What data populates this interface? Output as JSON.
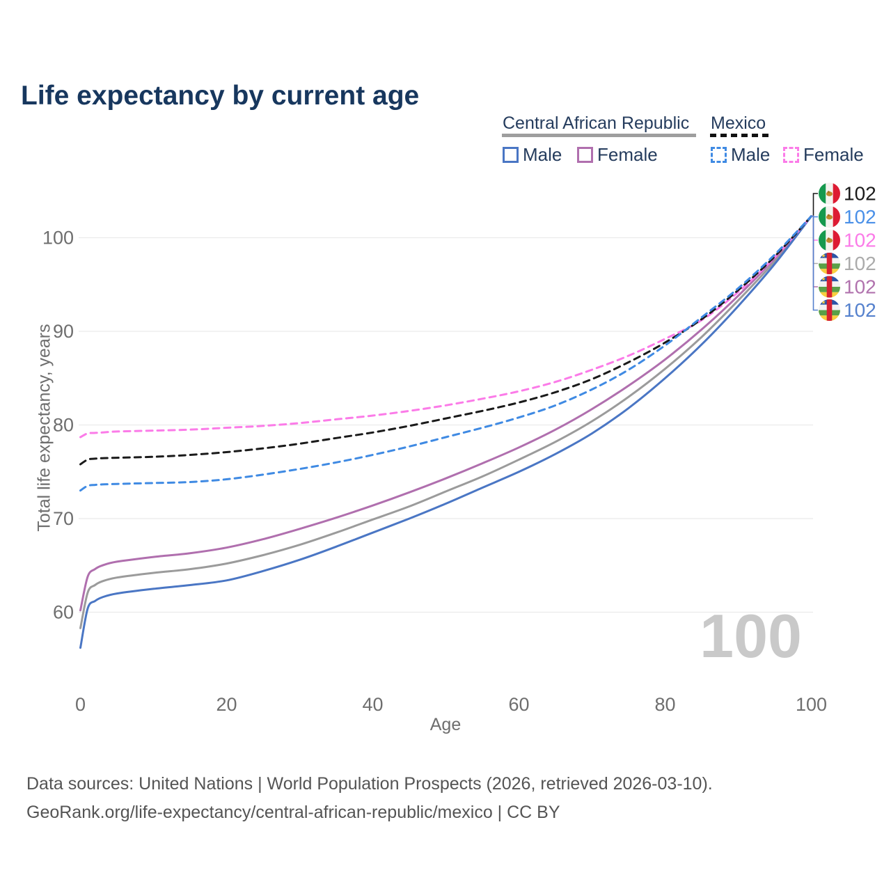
{
  "title": "Life expectancy by current age",
  "legend": {
    "car": {
      "name": "Central African Republic",
      "male_label": "Male",
      "female_label": "Female",
      "underline_color": "#9e9e9e",
      "underline_style": "solid"
    },
    "mexico": {
      "name": "Mexico",
      "male_label": "Male",
      "female_label": "Female",
      "underline_color": "#111111",
      "underline_style": "dashed"
    }
  },
  "watermark_age": "100",
  "footer": {
    "line1": "Data sources: United Nations | World Population Prospects (2026, retrieved 2026-03-10).",
    "line2": "GeoRank.org/life-expectancy/central-african-republic/mexico | CC BY"
  },
  "colors": {
    "title_text": "#17375e",
    "legend_text": "#253c5d",
    "grid": "#ebebeb",
    "axis_text": "#6e6e6e",
    "watermark": "#c9c9c9",
    "car_male": "#4a76c4",
    "car_female": "#b06fae",
    "car_total": "#9b9b9b",
    "mx_male": "#3f8ae3",
    "mx_female": "#fb7be8",
    "mx_total": "#1a1a1a"
  },
  "chart_data": {
    "type": "line",
    "title": "Life expectancy by current age",
    "xlabel": "Age",
    "ylabel": "Total life expectancy, years",
    "xlim": [
      0,
      100
    ],
    "ylim": [
      56,
      103
    ],
    "xticks": [
      0,
      20,
      40,
      60,
      80,
      100
    ],
    "yticks": [
      60,
      70,
      80,
      90,
      100
    ],
    "grid": "horizontal",
    "legend_position": "top-right",
    "x": [
      0,
      1,
      2,
      3,
      5,
      10,
      15,
      20,
      25,
      30,
      35,
      40,
      45,
      50,
      55,
      60,
      65,
      70,
      75,
      80,
      85,
      90,
      95,
      100
    ],
    "series": [
      {
        "id": "car-total",
        "name": "Central African Republic",
        "sex": "Both",
        "style": "solid",
        "color": "#9b9b9b",
        "values": [
          58.3,
          62.1,
          62.9,
          63.3,
          63.7,
          64.2,
          64.6,
          65.2,
          66.1,
          67.2,
          68.5,
          69.9,
          71.3,
          72.9,
          74.5,
          76.3,
          78.2,
          80.4,
          83.0,
          86.0,
          89.4,
          93.3,
          97.5,
          102.3
        ]
      },
      {
        "id": "car-female",
        "name": "Central African Republic — Female",
        "sex": "Female",
        "style": "solid",
        "color": "#b06fae",
        "values": [
          60.2,
          63.8,
          64.6,
          65.0,
          65.4,
          65.9,
          66.3,
          66.9,
          67.8,
          68.9,
          70.1,
          71.4,
          72.8,
          74.3,
          75.9,
          77.6,
          79.5,
          81.7,
          84.2,
          87.0,
          90.2,
          93.8,
          97.8,
          102.3
        ]
      },
      {
        "id": "car-male",
        "name": "Central African Republic — Male",
        "sex": "Male",
        "style": "solid",
        "color": "#4a76c4",
        "values": [
          56.2,
          60.4,
          61.2,
          61.6,
          62.0,
          62.5,
          62.9,
          63.4,
          64.4,
          65.6,
          67.0,
          68.5,
          70.0,
          71.6,
          73.3,
          75.0,
          76.9,
          79.1,
          81.8,
          85.0,
          88.6,
          92.7,
          97.2,
          102.3
        ]
      },
      {
        "id": "mx-female",
        "name": "Mexico — Female",
        "sex": "Female",
        "style": "dashed",
        "color": "#fb7be8",
        "values": [
          78.7,
          79.1,
          79.15,
          79.2,
          79.3,
          79.4,
          79.5,
          79.7,
          79.9,
          80.2,
          80.6,
          81.0,
          81.5,
          82.1,
          82.8,
          83.6,
          84.6,
          85.9,
          87.4,
          89.2,
          91.2,
          94.2,
          97.9,
          102.3
        ]
      },
      {
        "id": "mx-total",
        "name": "Mexico",
        "sex": "Both",
        "style": "dashed",
        "color": "#1a1a1a",
        "values": [
          75.8,
          76.3,
          76.4,
          76.45,
          76.5,
          76.6,
          76.8,
          77.1,
          77.5,
          78.0,
          78.6,
          79.2,
          79.9,
          80.7,
          81.5,
          82.4,
          83.5,
          84.9,
          86.7,
          88.8,
          91.3,
          94.4,
          98.0,
          102.3
        ]
      },
      {
        "id": "mx-male",
        "name": "Mexico — Male",
        "sex": "Male",
        "style": "dashed",
        "color": "#3f8ae3",
        "values": [
          73.0,
          73.5,
          73.6,
          73.65,
          73.7,
          73.8,
          73.9,
          74.2,
          74.7,
          75.3,
          76.0,
          76.8,
          77.7,
          78.7,
          79.7,
          80.8,
          82.1,
          83.8,
          85.9,
          88.5,
          91.5,
          94.6,
          98.2,
          102.3
        ]
      }
    ],
    "end_labels": [
      {
        "flag": "mx",
        "value": "102",
        "color": "#1a1a1a",
        "series": "mx-total"
      },
      {
        "flag": "mx",
        "value": "102",
        "color": "#4a90e8",
        "series": "mx-male"
      },
      {
        "flag": "mx",
        "value": "102",
        "color": "#fb7be8",
        "series": "mx-female"
      },
      {
        "flag": "cf",
        "value": "102",
        "color": "#ababab",
        "series": "car-total"
      },
      {
        "flag": "cf",
        "value": "102",
        "color": "#b173ae",
        "series": "car-female"
      },
      {
        "flag": "cf",
        "value": "102",
        "color": "#5581cd",
        "series": "car-male"
      }
    ]
  }
}
